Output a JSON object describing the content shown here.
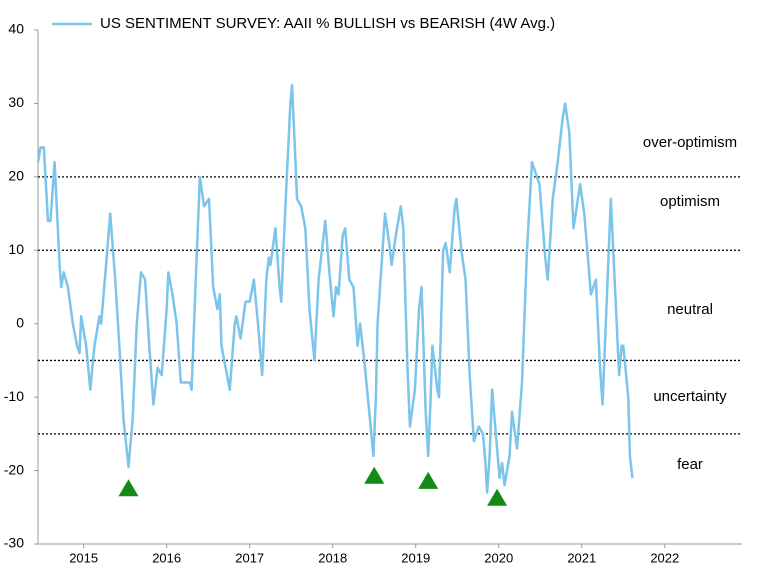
{
  "chart_data": {
    "type": "line",
    "title": "US SENTIMENT SURVEY: AAII % BULLISH vs BEARISH (4W Avg.)",
    "series": [
      {
        "name": "US SENTIMENT SURVEY: AAII % BULLISH vs BEARISH (4W Avg.)",
        "color": "#7cc4ea",
        "x": [
          2014.95,
          2014.98,
          2015.02,
          2015.05,
          2015.07,
          2015.1,
          2015.15,
          2015.21,
          2015.23,
          2015.26,
          2015.31,
          2015.37,
          2015.42,
          2015.45,
          2015.47,
          2015.53,
          2015.58,
          2015.63,
          2015.69,
          2015.71,
          2015.77,
          2015.82,
          2015.88,
          2015.93,
          2015.98,
          2016.04,
          2016.09,
          2016.14,
          2016.19,
          2016.24,
          2016.29,
          2016.34,
          2016.39,
          2016.44,
          2016.5,
          2016.52,
          2016.57,
          2016.62,
          2016.67,
          2016.78,
          2016.8,
          2016.85,
          2016.9,
          2016.95,
          2017.01,
          2017.06,
          2017.11,
          2017.14,
          2017.16,
          2017.21,
          2017.26,
          2017.32,
          2017.34,
          2017.39,
          2017.45,
          2017.5,
          2017.55,
          2017.6,
          2017.65,
          2017.7,
          2017.73,
          2017.75,
          2017.81,
          2017.86,
          2017.88,
          2017.93,
          2017.99,
          2018.01,
          2018.04,
          2018.07,
          2018.12,
          2018.17,
          2018.22,
          2018.28,
          2018.33,
          2018.38,
          2018.41,
          2018.46,
          2018.51,
          2018.54,
          2018.57,
          2018.62,
          2018.65,
          2018.7,
          2018.75,
          2018.8,
          2018.83,
          2018.88,
          2018.94,
          2018.99,
          2019.02,
          2019.04,
          2019.1,
          2019.13,
          2019.18,
          2019.21,
          2019.26,
          2019.32,
          2019.35,
          2019.4,
          2019.43,
          2019.49,
          2019.54,
          2019.57,
          2019.62,
          2019.65,
          2019.68,
          2019.7,
          2019.76,
          2019.78,
          2019.83,
          2019.86,
          2019.91,
          2019.97,
          2019.99,
          2020.05,
          2020.1,
          2020.15,
          2020.2,
          2020.26,
          2020.31,
          2020.34,
          2020.36,
          2020.39,
          2020.42,
          2020.45,
          2020.51,
          2020.54,
          2020.57,
          2020.63,
          2020.66,
          2020.72,
          2020.78,
          2020.84,
          2020.9,
          2020.93,
          2020.99,
          2021.06,
          2021.09,
          2021.15,
          2021.21,
          2021.27,
          2021.3,
          2021.35,
          2021.4,
          2021.48,
          2021.53,
          2021.61,
          2021.67,
          2021.72,
          2021.75,
          2021.8,
          2021.85,
          2021.9,
          2021.95,
          2021.98,
          2022.0,
          2022.06,
          2022.08,
          2022.11
        ],
        "values": [
          22,
          24,
          24,
          18,
          14,
          14,
          22,
          8,
          5,
          7,
          5,
          0,
          -3,
          -4,
          1,
          -3,
          -9,
          -3,
          1,
          0,
          8,
          15,
          6,
          -3,
          -13,
          -19.5,
          -13,
          0,
          7,
          6,
          -3,
          -11,
          -6,
          -7,
          2,
          7,
          4,
          0,
          -8,
          -8,
          -9,
          6,
          20,
          16,
          17,
          5,
          2,
          4,
          -3,
          -6,
          -9,
          0,
          1,
          -2,
          3,
          3,
          6,
          0,
          -7,
          6,
          9,
          8,
          13,
          5,
          3,
          16,
          30,
          32.5,
          25,
          17,
          16,
          13,
          2,
          -5,
          6,
          11,
          14,
          7,
          1,
          5,
          4,
          12,
          13,
          6,
          5,
          -3,
          0,
          -5,
          -12,
          -18,
          -10,
          0,
          10,
          15,
          11,
          8,
          12,
          16,
          13,
          -6,
          -14,
          -9,
          2,
          5,
          -12,
          -18,
          -10,
          -3,
          -9,
          -10,
          10,
          11,
          7,
          16,
          17,
          10,
          6,
          -7,
          -16,
          -14,
          -15,
          -19,
          -23,
          -18,
          -9,
          -13,
          -21,
          -19,
          -22,
          -18,
          -12,
          -17,
          -8,
          10,
          22,
          21,
          19,
          9,
          6,
          17,
          22,
          28,
          30,
          26,
          13,
          19,
          15,
          4,
          6,
          -6,
          -11,
          3,
          17,
          5,
          -7,
          -3,
          -3,
          -10,
          -18,
          -21
        ]
      }
    ],
    "markers": {
      "color": "#138a13",
      "x": [
        2016.04,
        2019.0,
        2019.65,
        2020.48
      ],
      "values": [
        -22.4,
        -20.7,
        -21.4,
        -23.7
      ]
    },
    "reference_lines": [
      20,
      10,
      -5,
      -15
    ],
    "zone_labels": [
      "over-optimism",
      "optimism",
      "neutral",
      "uncertainty",
      "fear"
    ],
    "xlim": [
      2014.95,
      2023.43
    ],
    "xticks": [
      {
        "value": 2015.5,
        "label": "2015"
      },
      {
        "value": 2016.5,
        "label": "2016"
      },
      {
        "value": 2017.5,
        "label": "2017"
      },
      {
        "value": 2018.5,
        "label": "2018"
      },
      {
        "value": 2019.5,
        "label": "2019"
      },
      {
        "value": 2020.5,
        "label": "2020"
      },
      {
        "value": 2021.5,
        "label": "2021"
      },
      {
        "value": 2022.5,
        "label": "2022"
      }
    ],
    "ylim": [
      -30,
      40
    ],
    "yticks": [
      -30,
      -20,
      -10,
      0,
      10,
      20,
      30,
      40
    ]
  }
}
